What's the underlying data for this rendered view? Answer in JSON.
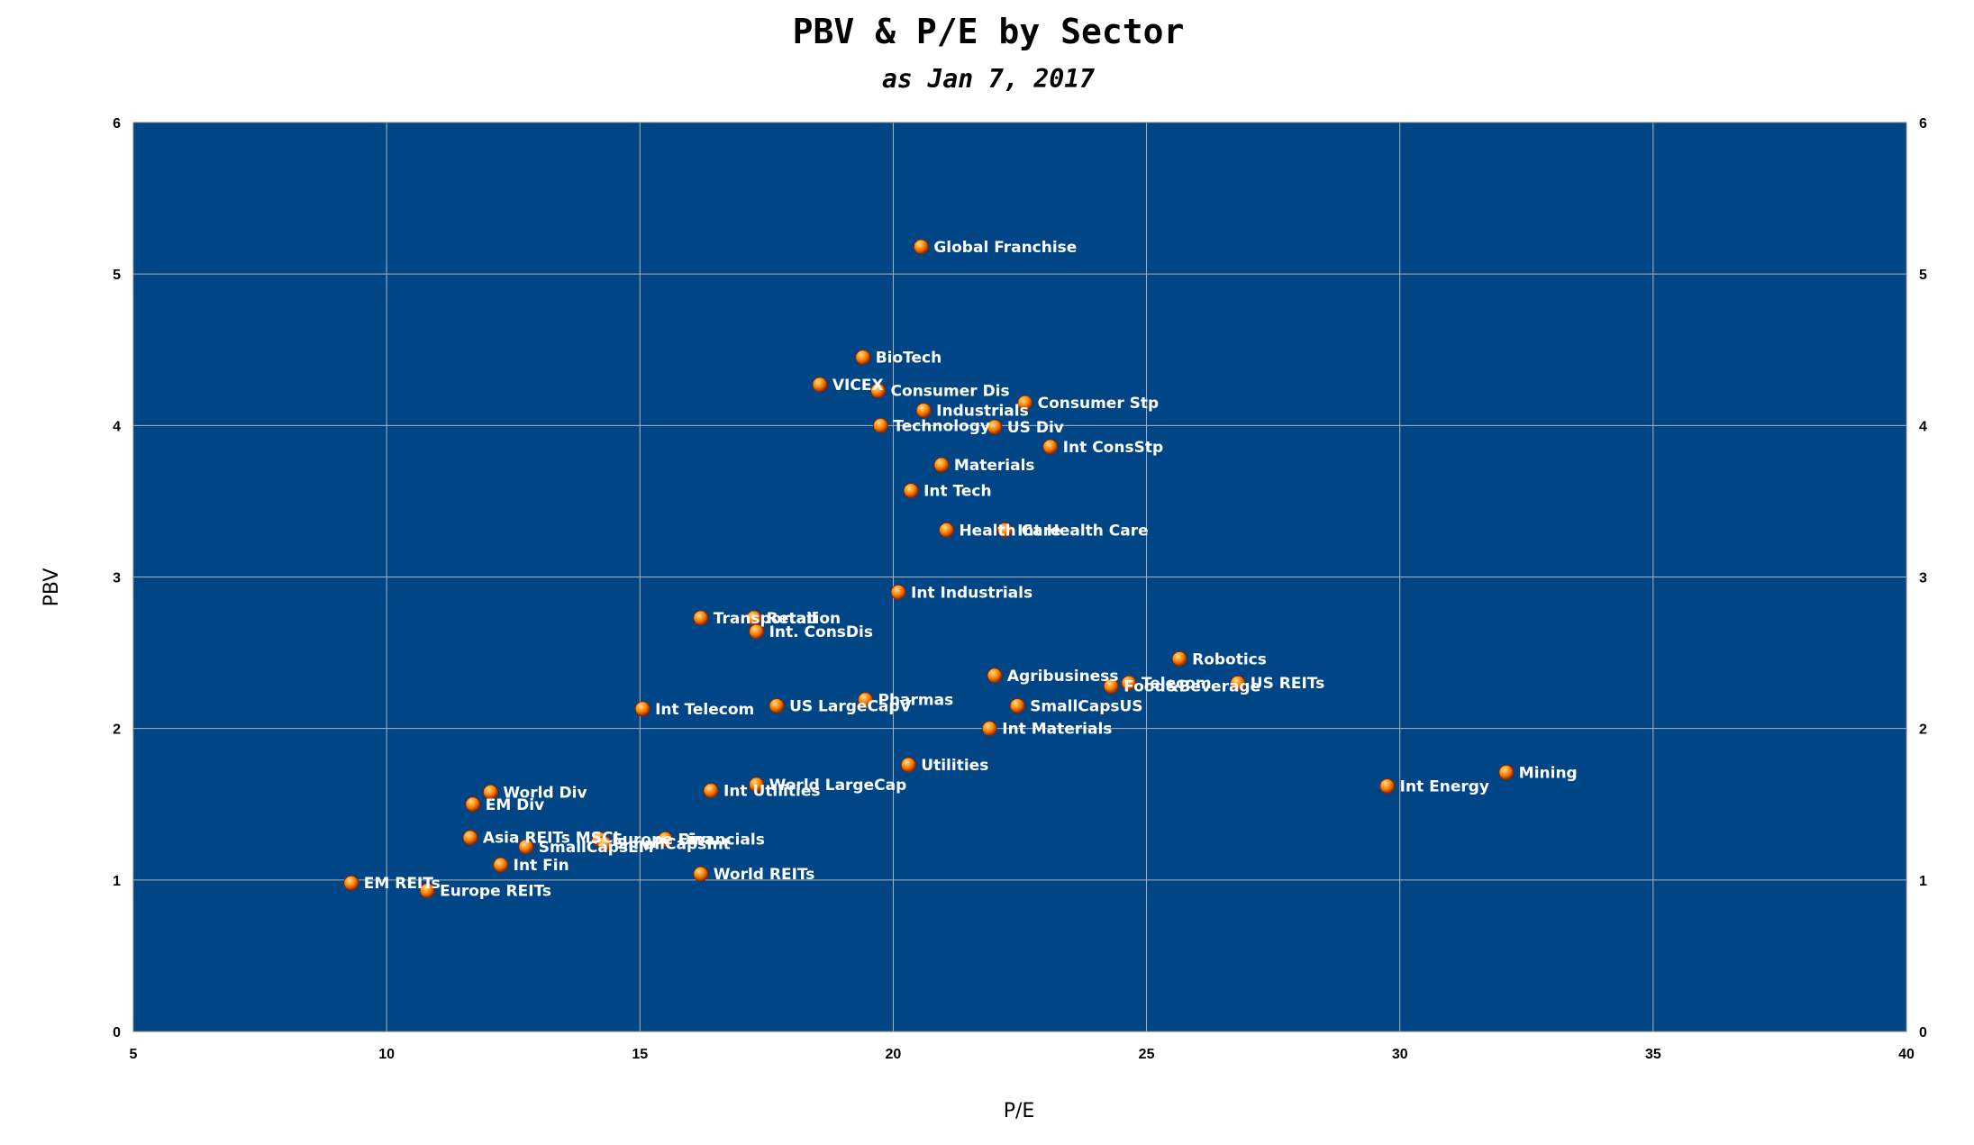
{
  "colors": {
    "plot_bg": "#004586",
    "grid": "#b3b3b3",
    "point_fill": "#ff7f00",
    "point_stroke": "#8b2500",
    "point_highlight": "#ffe08a",
    "label": "#ffffff"
  },
  "chart_data": {
    "type": "scatter",
    "title": "PBV & P/E by Sector",
    "subtitle": "as Jan 7, 2017",
    "xlabel": "P/E",
    "ylabel": "PBV",
    "xlim": [
      5,
      40
    ],
    "ylim": [
      0,
      6
    ],
    "xticks": [
      "5",
      "10",
      "15",
      "20",
      "25",
      "30",
      "35",
      "40"
    ],
    "yticks": [
      "0",
      "1",
      "2",
      "3",
      "4",
      "5",
      "6"
    ],
    "secondary_y_axis": true,
    "grid": true,
    "legend": "none",
    "points": [
      {
        "label": "Global Franchise",
        "x": 20.55,
        "y": 5.18
      },
      {
        "label": "BioTech",
        "x": 19.4,
        "y": 4.45
      },
      {
        "label": "VICEX",
        "x": 18.55,
        "y": 4.27
      },
      {
        "label": "Consumer Dis",
        "x": 19.7,
        "y": 4.23
      },
      {
        "label": "Consumer Stp",
        "x": 22.6,
        "y": 4.15
      },
      {
        "label": "Industrials",
        "x": 20.6,
        "y": 4.1
      },
      {
        "label": "Technology",
        "x": 19.75,
        "y": 4.0
      },
      {
        "label": "US Div",
        "x": 22.0,
        "y": 3.99
      },
      {
        "label": "Int ConsStp",
        "x": 23.1,
        "y": 3.86
      },
      {
        "label": "Materials",
        "x": 20.95,
        "y": 3.74
      },
      {
        "label": "Int Tech",
        "x": 20.35,
        "y": 3.57
      },
      {
        "label": "Health Care",
        "x": 21.05,
        "y": 3.31
      },
      {
        "label": "Int Health Care",
        "x": 22.2,
        "y": 3.31
      },
      {
        "label": "Int Industrials",
        "x": 20.1,
        "y": 2.9
      },
      {
        "label": "Transportation",
        "x": 16.2,
        "y": 2.73
      },
      {
        "label": "Retail",
        "x": 17.25,
        "y": 2.73
      },
      {
        "label": "Int. ConsDis",
        "x": 17.3,
        "y": 2.64
      },
      {
        "label": "Robotics",
        "x": 25.65,
        "y": 2.46
      },
      {
        "label": "Agribusiness",
        "x": 22.0,
        "y": 2.35
      },
      {
        "label": "Telecom",
        "x": 24.65,
        "y": 2.3
      },
      {
        "label": "US REITs",
        "x": 26.8,
        "y": 2.3
      },
      {
        "label": "Food&Beverage",
        "x": 24.3,
        "y": 2.28
      },
      {
        "label": "Pharmas",
        "x": 19.45,
        "y": 2.19
      },
      {
        "label": "US LargeCapV",
        "x": 17.7,
        "y": 2.15
      },
      {
        "label": "SmallCapsUS",
        "x": 22.45,
        "y": 2.15
      },
      {
        "label": "Int Telecom",
        "x": 15.05,
        "y": 2.13
      },
      {
        "label": "Int Materials",
        "x": 21.9,
        "y": 2.0
      },
      {
        "label": "Utilities",
        "x": 20.3,
        "y": 1.76
      },
      {
        "label": "Mining",
        "x": 32.1,
        "y": 1.71
      },
      {
        "label": "Int Energy",
        "x": 29.75,
        "y": 1.62
      },
      {
        "label": "World LargeCap",
        "x": 17.3,
        "y": 1.63
      },
      {
        "label": "Int Utilities",
        "x": 16.4,
        "y": 1.59
      },
      {
        "label": "World Div",
        "x": 12.05,
        "y": 1.58
      },
      {
        "label": "EM Div",
        "x": 11.7,
        "y": 1.5
      },
      {
        "label": "Financials",
        "x": 15.5,
        "y": 1.27
      },
      {
        "label": "Asia REITs MSCI",
        "x": 11.65,
        "y": 1.28
      },
      {
        "label": "Europe Div",
        "x": 14.2,
        "y": 1.27
      },
      {
        "label": "SmallCapsEM",
        "x": 12.75,
        "y": 1.22
      },
      {
        "label": "Int Fin",
        "x": 12.25,
        "y": 1.1
      },
      {
        "label": "SmallCapsInt",
        "x": 14.3,
        "y": 1.24
      },
      {
        "label": "World REITs",
        "x": 16.2,
        "y": 1.04
      },
      {
        "label": "EM REITs",
        "x": 9.3,
        "y": 0.98
      },
      {
        "label": "Europe REITs",
        "x": 10.8,
        "y": 0.93
      }
    ]
  }
}
